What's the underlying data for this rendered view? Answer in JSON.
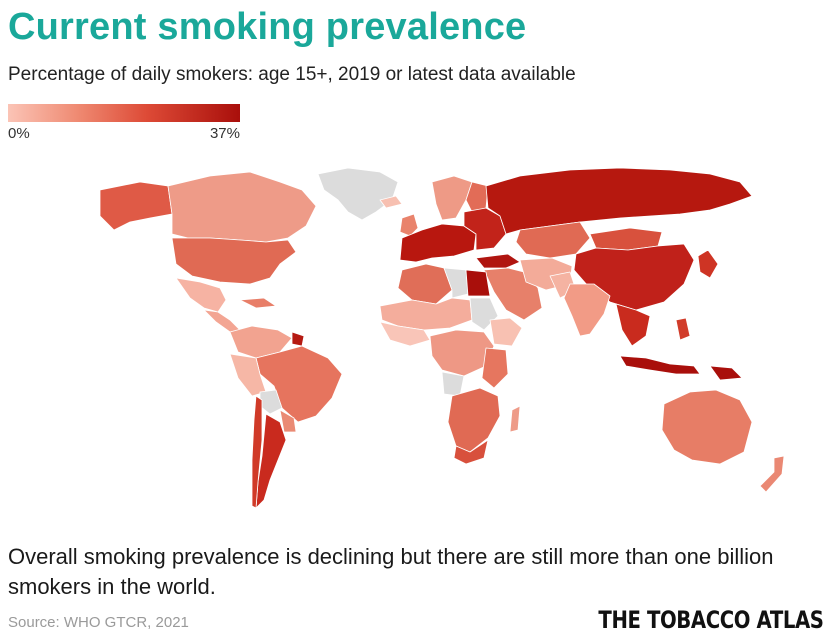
{
  "header": {
    "title": "Current smoking prevalence",
    "subtitle": "Percentage of daily smokers: age 15+, 2019 or latest data available"
  },
  "legend": {
    "min_label": "0%",
    "max_label": "37%",
    "min_value": 0,
    "max_value": 37,
    "colors": [
      "#fbc4b6",
      "#ef8a72",
      "#dd4a36",
      "#a90f0b"
    ],
    "no_data_color": "#dcdcdc"
  },
  "caption": "Overall smoking prevalence is declining but there are still more than one billion smokers in the world.",
  "source": "Source: WHO GTCR, 2021",
  "brand": "THE TOBACCO ATLAS"
}
